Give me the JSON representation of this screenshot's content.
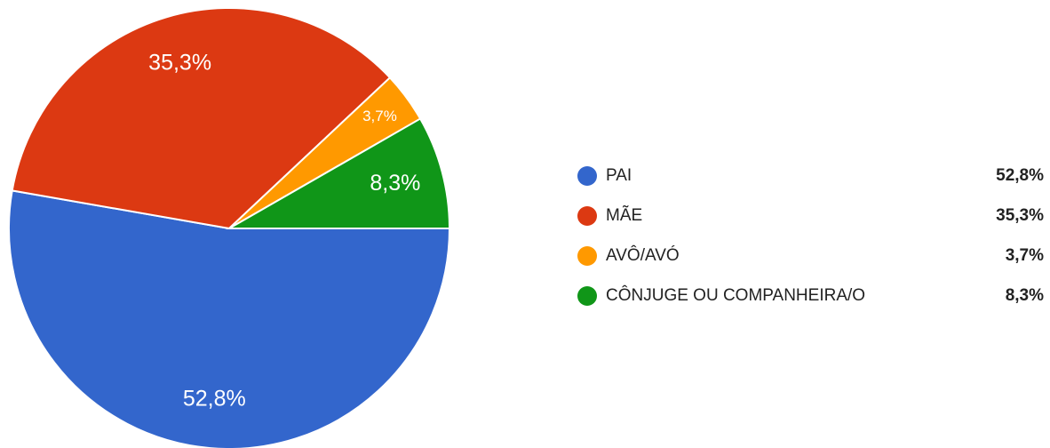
{
  "chart_data": {
    "type": "pie",
    "categories": [
      "PAI",
      "MÃE",
      "AVÔ/AVÓ",
      "CÔNJUGE OU COMPANHEIRA/O"
    ],
    "values": [
      52.8,
      35.3,
      3.7,
      8.3
    ],
    "value_labels": [
      "52,8%",
      "35,3%",
      "3,7%",
      "8,3%"
    ],
    "colors": [
      "#3366cc",
      "#dc3912",
      "#ff9900",
      "#109618"
    ],
    "legend": "right"
  }
}
